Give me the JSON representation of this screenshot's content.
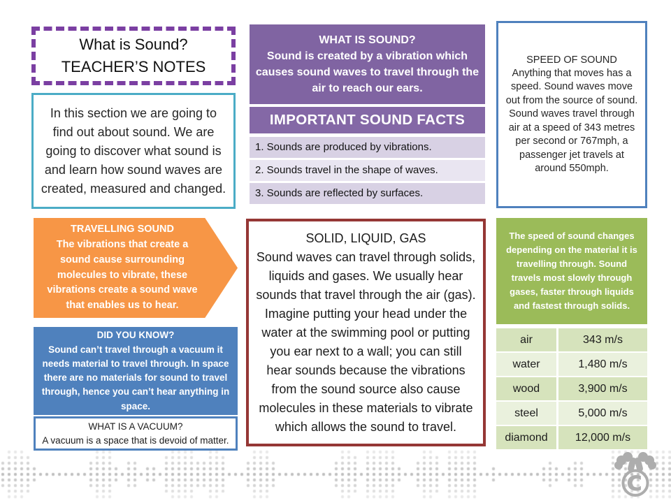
{
  "title_box": {
    "line1": "What is Sound?",
    "line2": "TEACHER’S NOTES"
  },
  "intro_box": {
    "text": "In this section we are going to find out about sound. We are going to discover what sound is and learn how sound waves are created, measured and changed."
  },
  "what_is_sound": {
    "heading": "WHAT IS SOUND?",
    "body": "Sound is created by a vibration which causes sound waves to travel through the air to reach our ears."
  },
  "sound_facts": {
    "heading": "IMPORTANT SOUND FACTS",
    "items": [
      "1. Sounds are produced by vibrations.",
      "2. Sounds travel in the shape of waves.",
      "3. Sounds are reflected by surfaces."
    ]
  },
  "speed_of_sound": {
    "heading": "SPEED OF SOUND",
    "body": "Anything that moves has a speed. Sound waves move out from the source of sound. Sound waves travel through air at a speed of 343 metres per second or 767mph, a passenger jet travels at around 550mph."
  },
  "travelling_sound": {
    "heading": "TRAVELLING SOUND",
    "body": "The vibrations that create a sound cause surrounding molecules to vibrate, these vibrations create a sound wave that enables us to hear."
  },
  "did_you_know": {
    "heading": "DID YOU KNOW?",
    "body": "Sound can’t travel through a vacuum it needs material to travel through. In space there are no materials for sound to travel through, hence you can’t hear anything in space."
  },
  "vacuum_box": {
    "heading": "WHAT IS A VACUUM?",
    "body": "A vacuum is a space that is devoid of matter."
  },
  "solid_liquid_gas": {
    "heading": "SOLID, LIQUID, GAS",
    "body": "Sound waves can travel through solids, liquids and gases. We usually hear sounds that travel through the air (gas). Imagine putting your head under the water at the swimming pool or putting you ear next to a wall; you can still hear sounds because the vibrations from the sound source also cause molecules in these materials to vibrate which allows the sound to travel."
  },
  "speed_table": {
    "intro": "The speed of sound changes depending on the material it is travelling through. Sound travels most slowly through gases, faster through liquids and fastest through solids.",
    "rows": [
      {
        "material": "air",
        "speed": "343 m/s"
      },
      {
        "material": "water",
        "speed": "1,480 m/s"
      },
      {
        "material": "wood",
        "speed": "3,900 m/s"
      },
      {
        "material": "steel",
        "speed": "5,000 m/s"
      },
      {
        "material": "diamond",
        "speed": "12,000 m/s"
      }
    ]
  },
  "logo": {
    "name": "moose-copyright-logo",
    "symbol": "©"
  },
  "colors": {
    "purple": "#8064A2",
    "purple-band": "#8468A6",
    "purple-dash": "#7B3FA2",
    "lavender-1": "#D8D1E4",
    "lavender-2": "#E9E5F1",
    "teal": "#4BACC6",
    "blue": "#4F81BD",
    "orange": "#F79646",
    "green": "#9BBB59",
    "green-row-1": "#D6E3BC",
    "green-row-2": "#EAF1DD",
    "red": "#953735",
    "dot-gray": "#8C8C8C"
  }
}
